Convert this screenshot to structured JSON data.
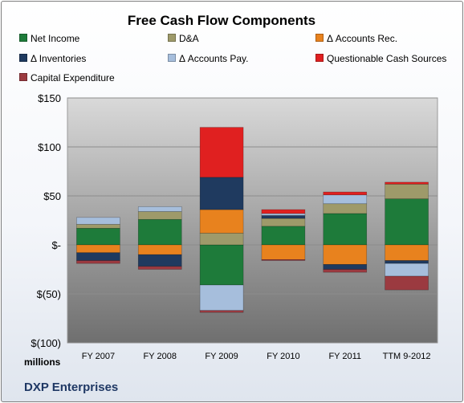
{
  "colors": {
    "net_income": "#1e7b3a",
    "da": "#9e9a6a",
    "accounts_rec": "#e8821e",
    "inventories": "#1f3a5f",
    "accounts_pay": "#a6bedc",
    "questionable": "#e02020",
    "capex": "#9b3a40"
  },
  "chart_data": {
    "type": "bar",
    "subtype": "stacked-diverging",
    "title": "Free Cash Flow Components",
    "ylabel": "millions",
    "company": "DXP Enterprises",
    "ylim": [
      -100,
      150
    ],
    "yticks": [
      {
        "value": 150,
        "label": "$150"
      },
      {
        "value": 100,
        "label": "$100"
      },
      {
        "value": 50,
        "label": "$50"
      },
      {
        "value": 0,
        "label": "$-"
      },
      {
        "value": -50,
        "label": "$(50)"
      },
      {
        "value": -100,
        "label": "$(100)"
      }
    ],
    "grid": true,
    "legend_position": "top",
    "categories": [
      "FY 2007",
      "FY 2008",
      "FY 2009",
      "FY 2010",
      "FY 2011",
      "TTM 9-2012"
    ],
    "series": [
      {
        "key": "net_income",
        "name": "Net Income",
        "values": [
          17,
          26,
          -41,
          19,
          32,
          47
        ]
      },
      {
        "key": "da",
        "name": "D&A",
        "values": [
          4,
          8,
          12,
          8,
          10,
          15
        ]
      },
      {
        "key": "accounts_rec",
        "name": "Δ Accounts Rec.",
        "values": [
          -8,
          -10,
          24,
          -15,
          -20,
          -16
        ]
      },
      {
        "key": "inventories",
        "name": "Δ Inventories",
        "values": [
          -8,
          -12,
          33,
          3,
          -5,
          -3
        ]
      },
      {
        "key": "accounts_pay",
        "name": "Δ Accounts Pay.",
        "values": [
          7,
          5,
          -26,
          2,
          9,
          -13
        ]
      },
      {
        "key": "questionable",
        "name": "Questionable Cash Sources",
        "values": [
          0,
          0,
          51,
          4,
          3,
          2
        ]
      },
      {
        "key": "capex",
        "name": "Capital Expenditure",
        "values": [
          -3,
          -3,
          -2,
          -1,
          -3,
          -14
        ]
      }
    ]
  }
}
